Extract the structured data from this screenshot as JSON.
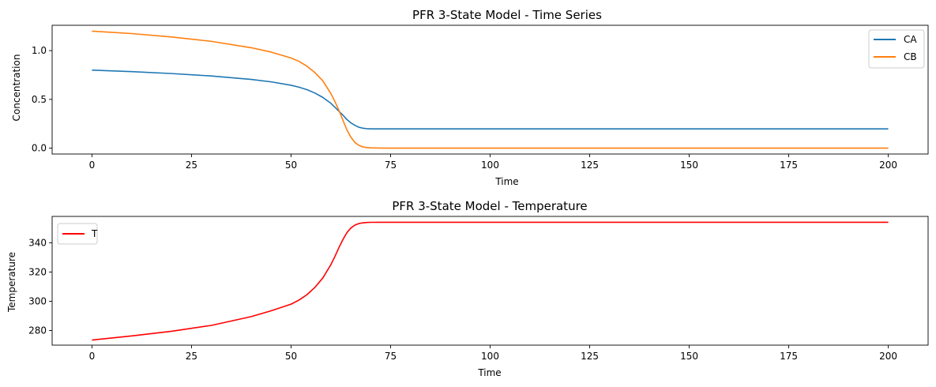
{
  "chart_data": [
    {
      "type": "line",
      "title": "PFR 3-State Model - Time Series",
      "xlabel": "Time",
      "ylabel": "Concentration",
      "xlim": [
        -10,
        210
      ],
      "ylim": [
        -0.06,
        1.26
      ],
      "xticks": [
        0,
        25,
        50,
        75,
        100,
        125,
        150,
        175,
        200
      ],
      "yticks": [
        0.0,
        0.5,
        1.0
      ],
      "ytick_labels": [
        "0.0",
        "0.5",
        "1.0"
      ],
      "grid": false,
      "legend_position": "top-right",
      "x": [
        0,
        10,
        20,
        30,
        40,
        45,
        50,
        52,
        54,
        56,
        58,
        60,
        61,
        62,
        63,
        64,
        65,
        66,
        67,
        68,
        69,
        70,
        72,
        75,
        80,
        100,
        125,
        150,
        175,
        200
      ],
      "series": [
        {
          "name": "CA",
          "color": "#1f77b4",
          "values": [
            0.8,
            0.785,
            0.765,
            0.74,
            0.705,
            0.68,
            0.645,
            0.625,
            0.6,
            0.565,
            0.52,
            0.46,
            0.42,
            0.38,
            0.34,
            0.295,
            0.26,
            0.235,
            0.215,
            0.205,
            0.2,
            0.198,
            0.198,
            0.198,
            0.198,
            0.198,
            0.198,
            0.198,
            0.198,
            0.198
          ]
        },
        {
          "name": "CB",
          "color": "#ff7f0e",
          "values": [
            1.2,
            1.175,
            1.14,
            1.095,
            1.03,
            0.985,
            0.925,
            0.89,
            0.84,
            0.775,
            0.69,
            0.56,
            0.48,
            0.39,
            0.29,
            0.19,
            0.115,
            0.06,
            0.03,
            0.013,
            0.006,
            0.003,
            0.001,
            0.0,
            0.0,
            0.0,
            0.0,
            0.0,
            0.0,
            0.0
          ]
        }
      ]
    },
    {
      "type": "line",
      "title": "PFR 3-State Model - Temperature",
      "xlabel": "Time",
      "ylabel": "Temperature",
      "xlim": [
        -10,
        210
      ],
      "ylim": [
        270,
        358
      ],
      "xticks": [
        0,
        25,
        50,
        75,
        100,
        125,
        150,
        175,
        200
      ],
      "yticks": [
        280,
        300,
        320,
        340
      ],
      "ytick_labels": [
        "280",
        "300",
        "320",
        "340"
      ],
      "grid": false,
      "legend_position": "top-left",
      "x": [
        0,
        10,
        20,
        30,
        40,
        45,
        50,
        52,
        54,
        56,
        58,
        60,
        61,
        62,
        63,
        64,
        65,
        66,
        67,
        68,
        69,
        70,
        72,
        75,
        80,
        100,
        125,
        150,
        175,
        200
      ],
      "series": [
        {
          "name": "T",
          "color": "#ff0000",
          "values": [
            273.5,
            276.3,
            279.5,
            283.5,
            289.5,
            293.5,
            298.0,
            300.8,
            304.5,
            309.5,
            316.0,
            325.0,
            330.5,
            336.5,
            342.0,
            346.8,
            350.0,
            352.0,
            353.1,
            353.6,
            353.85,
            353.95,
            354.0,
            354.0,
            354.0,
            354.0,
            354.0,
            354.0,
            354.0,
            354.0
          ]
        }
      ]
    }
  ]
}
